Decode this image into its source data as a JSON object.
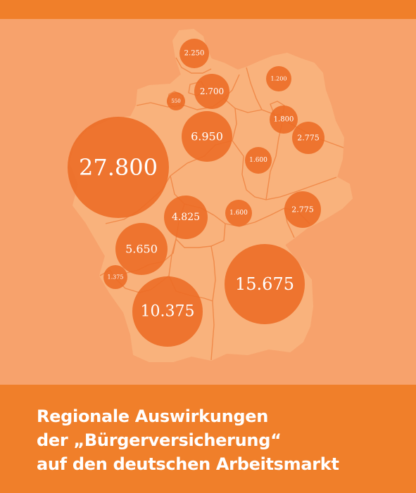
{
  "colors": {
    "band": "#f07f2a",
    "background": "#f7a26c",
    "country_fill": "#f9b27c",
    "region_border": "#f08a4a",
    "bubble": "#ec6b24"
  },
  "regions": [
    {
      "id": "schleswig-holstein",
      "value": "2.250"
    },
    {
      "id": "hamburg",
      "value": "550"
    },
    {
      "id": "mecklenburg-vorpommern",
      "value": "1.200"
    },
    {
      "id": "bremen-niedersachsen",
      "value": "2.700"
    },
    {
      "id": "niedersachsen",
      "value": "6.950"
    },
    {
      "id": "berlin",
      "value": "1.800"
    },
    {
      "id": "brandenburg",
      "value": "2.775"
    },
    {
      "id": "sachsen-anhalt",
      "value": "1.600"
    },
    {
      "id": "nordrhein-westfalen",
      "value": "27.800"
    },
    {
      "id": "hessen",
      "value": "4.825"
    },
    {
      "id": "thueringen",
      "value": "1.600"
    },
    {
      "id": "sachsen",
      "value": "2.775"
    },
    {
      "id": "rheinland-pfalz",
      "value": "5.650"
    },
    {
      "id": "saarland",
      "value": "1.375"
    },
    {
      "id": "bayern",
      "value": "15.675"
    },
    {
      "id": "baden-wuerttemberg",
      "value": "10.375"
    }
  ],
  "title": {
    "line1": "Regionale Auswirkungen",
    "line2": "der „Bürgerversicherung“",
    "line3": "auf den deutschen Arbeitsmarkt"
  }
}
